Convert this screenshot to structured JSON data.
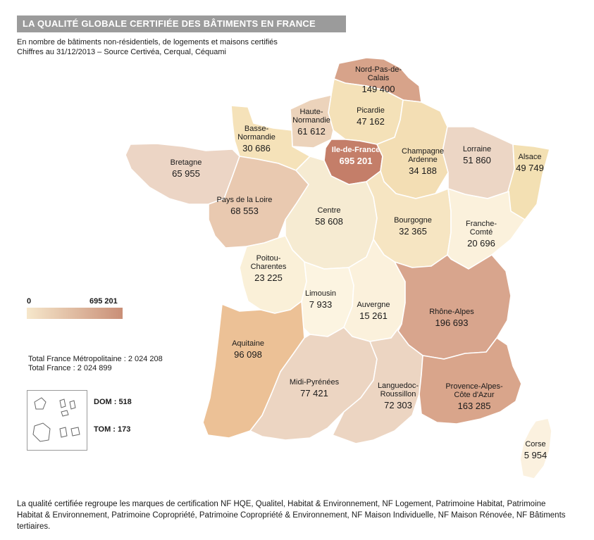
{
  "title": "LA QUALITÉ GLOBALE CERTIFIÉE DES BÂTIMENTS EN FRANCE",
  "subtitle_line1": "En nombre de bâtiments non-résidentiels, de logements et maisons certifiés",
  "subtitle_line2": "Chiffres au 31/12/2013 – Source Certivéa, Cerqual, Céquami",
  "legend": {
    "min": "0",
    "max": "695 201",
    "color_low": "#f6e7cb",
    "color_high": "#c98f77"
  },
  "totals": {
    "metro": "Total France Métropolitaine : 2 024 208",
    "france": "Total France   : 2 024 899"
  },
  "dom": "DOM : 518",
  "tom": "TOM : 173",
  "regions": [
    {
      "name_lines": [
        "Nord-Pas-de-",
        "Calais"
      ],
      "value": "149 400",
      "count": 149400,
      "color": "#d7a38a"
    },
    {
      "name_lines": [
        "Picardie"
      ],
      "value": "47 162",
      "count": 47162,
      "color": "#f4e1b8"
    },
    {
      "name_lines": [
        "Haute-",
        "Normandie"
      ],
      "value": "61 612",
      "count": 61612,
      "color": "#ecd3bb"
    },
    {
      "name_lines": [
        "Basse-",
        "Normandie"
      ],
      "value": "30 686",
      "count": 30686,
      "color": "#f5e2b9"
    },
    {
      "name_lines": [
        "Ile-de-France"
      ],
      "value": "695 201",
      "count": 695201,
      "color": "#c47e69"
    },
    {
      "name_lines": [
        "Champagne",
        "Ardenne"
      ],
      "value": "34 188",
      "count": 34188,
      "color": "#f3deb4"
    },
    {
      "name_lines": [
        "Lorraine"
      ],
      "value": "51 860",
      "count": 51860,
      "color": "#ecd6c5"
    },
    {
      "name_lines": [
        "Alsace"
      ],
      "value": "49 749",
      "count": 49749,
      "color": "#f3e0b3"
    },
    {
      "name_lines": [
        "Bretagne"
      ],
      "value": "65 955",
      "count": 65955,
      "color": "#ecd5c5"
    },
    {
      "name_lines": [
        "Pays de la Loire"
      ],
      "value": "68 553",
      "count": 68553,
      "color": "#e9c9b0"
    },
    {
      "name_lines": [
        "Centre"
      ],
      "value": "58 608",
      "count": 58608,
      "color": "#f6ebd2"
    },
    {
      "name_lines": [
        "Bourgogne"
      ],
      "value": "32 365",
      "count": 32365,
      "color": "#f6e5c2"
    },
    {
      "name_lines": [
        "Franche-",
        "Comté"
      ],
      "value": "20 696",
      "count": 20696,
      "color": "#fbf1dc"
    },
    {
      "name_lines": [
        "Poitou-",
        "Charentes"
      ],
      "value": "23 225",
      "count": 23225,
      "color": "#faf0d8"
    },
    {
      "name_lines": [
        "Limousin"
      ],
      "value": "7 933",
      "count": 7933,
      "color": "#fcf4e1"
    },
    {
      "name_lines": [
        "Auvergne"
      ],
      "value": "15 261",
      "count": 15261,
      "color": "#fbf1dc"
    },
    {
      "name_lines": [
        "Rhône-Alpes"
      ],
      "value": "196 693",
      "count": 196693,
      "color": "#d8a58d"
    },
    {
      "name_lines": [
        "Aquitaine"
      ],
      "value": "96 098",
      "count": 96098,
      "color": "#ecc196"
    },
    {
      "name_lines": [
        "Midi-Pyrénées"
      ],
      "value": "77 421",
      "count": 77421,
      "color": "#ecd5c2"
    },
    {
      "name_lines": [
        "Languedoc-",
        "Roussillon"
      ],
      "value": "72 303",
      "count": 72303,
      "color": "#ecd5c2"
    },
    {
      "name_lines": [
        "Provence-Alpes-",
        "Côte d'Azur"
      ],
      "value": "163 285",
      "count": 163285,
      "color": "#d9a58b"
    },
    {
      "name_lines": [
        "Corse"
      ],
      "value": "5 954",
      "count": 5954,
      "color": "#fbf1df"
    }
  ],
  "footer": "La qualité certifiée regroupe les marques de certification NF HQE, Qualitel, Habitat & Environnement, NF Logement, Patrimoine Habitat, Patrimoine Habitat & Environnement, Patrimoine Copropriété, Patrimoine Copropriété & Environnement, NF Maison Individuelle, NF Maison Rénovée, NF Bâtiments tertiaires."
}
